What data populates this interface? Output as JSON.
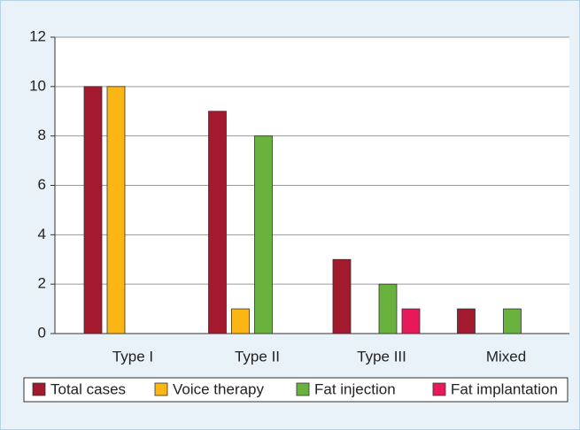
{
  "chart_data": {
    "type": "bar",
    "categories": [
      "Type I",
      "Type II",
      "Type III",
      "Mixed"
    ],
    "series": [
      {
        "name": "Total cases",
        "color": "#a3192e",
        "values": [
          10,
          9,
          3,
          1
        ]
      },
      {
        "name": "Voice therapy",
        "color": "#fbb616",
        "values": [
          10,
          1,
          0,
          0
        ]
      },
      {
        "name": "Fat injection",
        "color": "#6ab23e",
        "values": [
          0,
          8,
          2,
          1
        ]
      },
      {
        "name": "Fat implantation",
        "color": "#e8195b",
        "values": [
          0,
          0,
          1,
          0
        ]
      }
    ],
    "ylim": [
      0,
      12
    ],
    "yticks": [
      0,
      2,
      4,
      6,
      8,
      10,
      12
    ],
    "grid": true,
    "legend": "bottom"
  }
}
